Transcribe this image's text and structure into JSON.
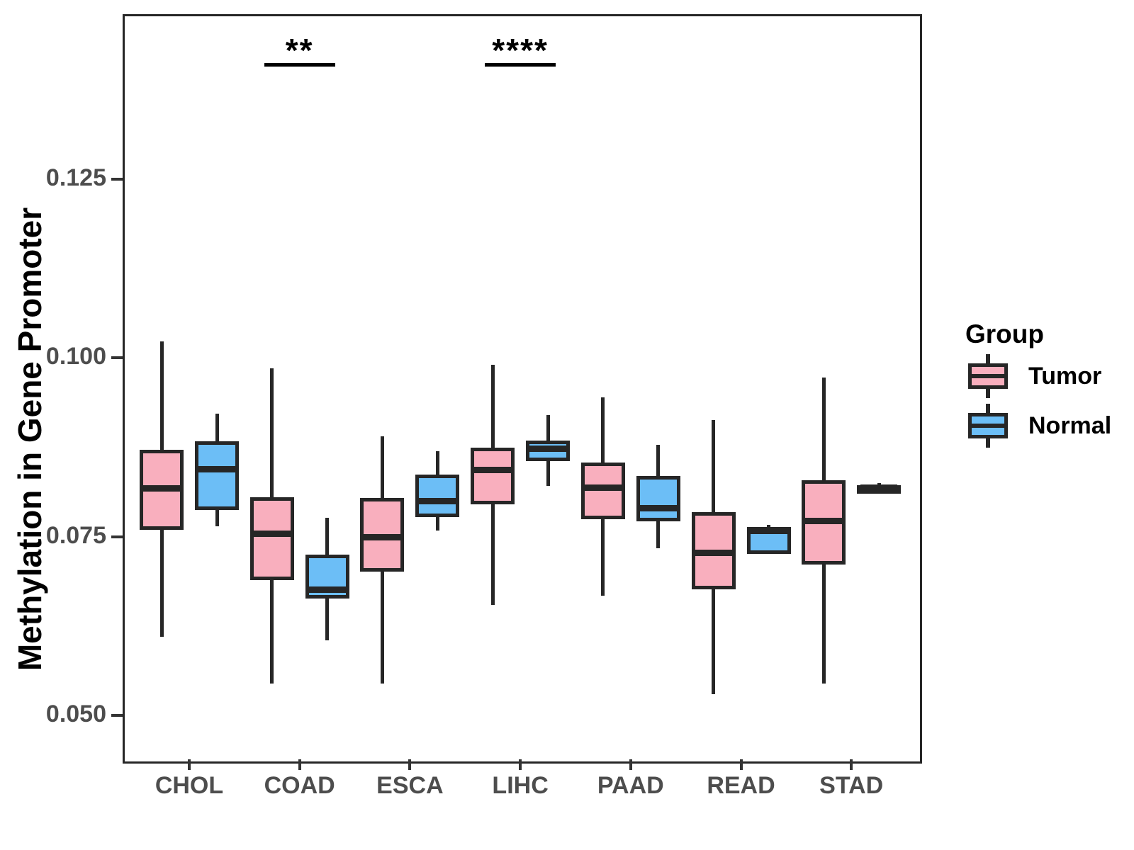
{
  "chart_data": {
    "type": "grouped_boxplot",
    "ylabel": "Methylation in Gene Promoter",
    "yticks": [
      0.05,
      0.075,
      0.1,
      0.125
    ],
    "ytick_labels": [
      "0.050",
      "0.075",
      "0.100",
      "0.125"
    ],
    "ylim": [
      0.044,
      0.148
    ],
    "grid": "off",
    "categories": [
      "CHOL",
      "COAD",
      "ESCA",
      "LIHC",
      "PAAD",
      "READ",
      "STAD"
    ],
    "colors": {
      "tumor_fill": "#F9AFBE",
      "normal_fill": "#6CBEF6",
      "stroke": "#262626",
      "axis_text": "#4D4D4D"
    },
    "legend": {
      "title": "Group",
      "position": "right",
      "entries": [
        {
          "label": "Tumor",
          "color": "#F9AFBE"
        },
        {
          "label": "Normal",
          "color": "#6CBEF6"
        }
      ]
    },
    "series": [
      {
        "name": "Tumor",
        "color": "#F9AFBE",
        "boxes": [
          {
            "category": "CHOL",
            "whisker_low": 0.061,
            "q1": 0.076,
            "median": 0.0818,
            "q3": 0.0872,
            "whisker_high": 0.1023
          },
          {
            "category": "COAD",
            "whisker_low": 0.0545,
            "q1": 0.0689,
            "median": 0.0754,
            "q3": 0.0805,
            "whisker_high": 0.0985
          },
          {
            "category": "ESCA",
            "whisker_low": 0.0545,
            "q1": 0.0701,
            "median": 0.0749,
            "q3": 0.0804,
            "whisker_high": 0.089
          },
          {
            "category": "LIHC",
            "whisker_low": 0.0655,
            "q1": 0.0795,
            "median": 0.0843,
            "q3": 0.0875,
            "whisker_high": 0.099
          },
          {
            "category": "PAAD",
            "whisker_low": 0.0667,
            "q1": 0.0774,
            "median": 0.0819,
            "q3": 0.0854,
            "whisker_high": 0.0945
          },
          {
            "category": "READ",
            "whisker_low": 0.053,
            "q1": 0.0676,
            "median": 0.0727,
            "q3": 0.0784,
            "whisker_high": 0.0913
          },
          {
            "category": "STAD",
            "whisker_low": 0.0545,
            "q1": 0.0711,
            "median": 0.0772,
            "q3": 0.0829,
            "whisker_high": 0.0973
          }
        ]
      },
      {
        "name": "Normal",
        "color": "#6CBEF6",
        "boxes": [
          {
            "category": "CHOL",
            "whisker_low": 0.0765,
            "q1": 0.0787,
            "median": 0.0844,
            "q3": 0.0883,
            "whisker_high": 0.0922
          },
          {
            "category": "COAD",
            "whisker_low": 0.0605,
            "q1": 0.0663,
            "median": 0.0676,
            "q3": 0.0725,
            "whisker_high": 0.0776
          },
          {
            "category": "ESCA",
            "whisker_low": 0.0759,
            "q1": 0.0777,
            "median": 0.08,
            "q3": 0.0837,
            "whisker_high": 0.087
          },
          {
            "category": "LIHC",
            "whisker_low": 0.0821,
            "q1": 0.0856,
            "median": 0.0873,
            "q3": 0.0884,
            "whisker_high": 0.092
          },
          {
            "category": "PAAD",
            "whisker_low": 0.0734,
            "q1": 0.0771,
            "median": 0.079,
            "q3": 0.0835,
            "whisker_high": 0.0878
          },
          {
            "category": "READ",
            "whisker_low": 0.0726,
            "q1": 0.0726,
            "median": 0.0758,
            "q3": 0.0764,
            "whisker_high": 0.0767
          },
          {
            "category": "STAD",
            "whisker_low": 0.081,
            "q1": 0.0816,
            "median": 0.0819,
            "q3": 0.0822,
            "whisker_high": 0.0825
          }
        ]
      }
    ],
    "annotations": [
      {
        "label": "**",
        "category": "COAD"
      },
      {
        "label": "****",
        "category": "LIHC"
      }
    ]
  }
}
